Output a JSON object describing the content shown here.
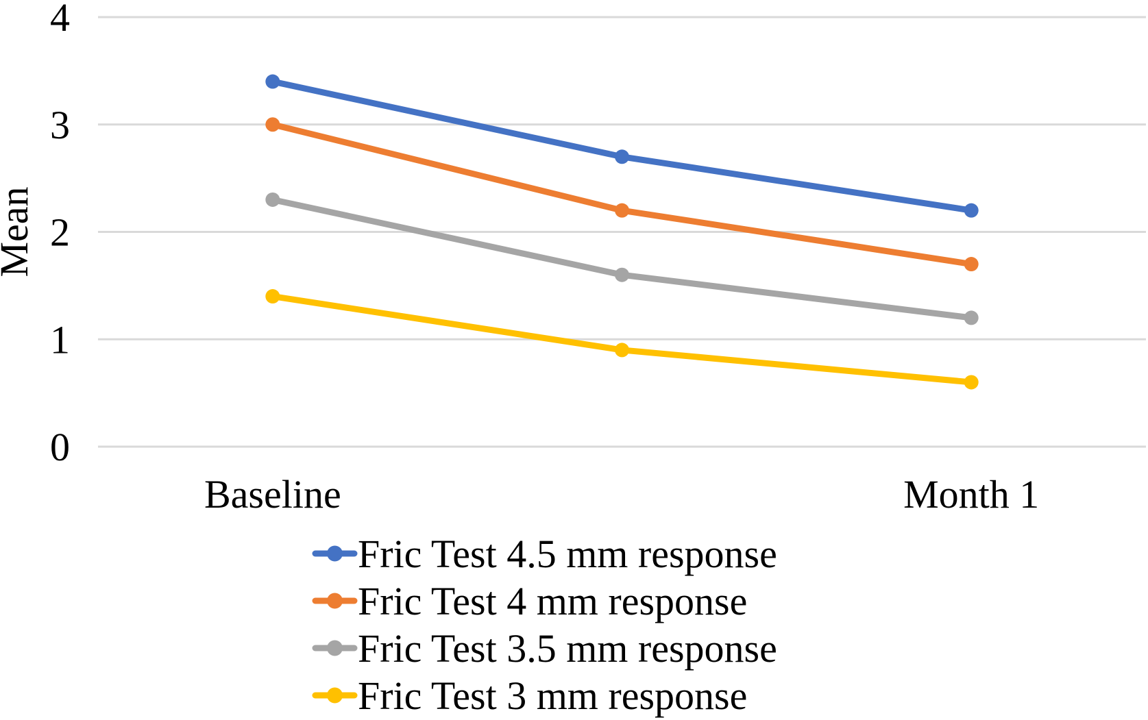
{
  "chart_data": {
    "type": "line",
    "title": "",
    "ylabel": "Mean",
    "xlabel": "",
    "ylim": [
      0,
      4
    ],
    "yticks": [
      0,
      1,
      2,
      3,
      4
    ],
    "grid": "horizontal-gridlines-on",
    "legend_position": "bottom-left-of-center",
    "marker": "circle",
    "categories": [
      "Baseline",
      "",
      "Month 1"
    ],
    "series": [
      {
        "name": "Fric Test 4.5 mm response",
        "color": "#4472C4",
        "values": [
          3.4,
          2.7,
          2.2
        ]
      },
      {
        "name": "Fric Test 4 mm response",
        "color": "#ED7D31",
        "values": [
          3.0,
          2.2,
          1.7
        ]
      },
      {
        "name": "Fric Test 3.5 mm response",
        "color": "#A5A5A5",
        "values": [
          2.3,
          1.6,
          1.2
        ]
      },
      {
        "name": "Fric Test 3 mm response",
        "color": "#FFC000",
        "values": [
          1.4,
          0.9,
          0.6
        ]
      }
    ],
    "colors": {
      "gridline": "#D9D9D9",
      "text": "#000000",
      "background": "#FFFFFF"
    }
  }
}
